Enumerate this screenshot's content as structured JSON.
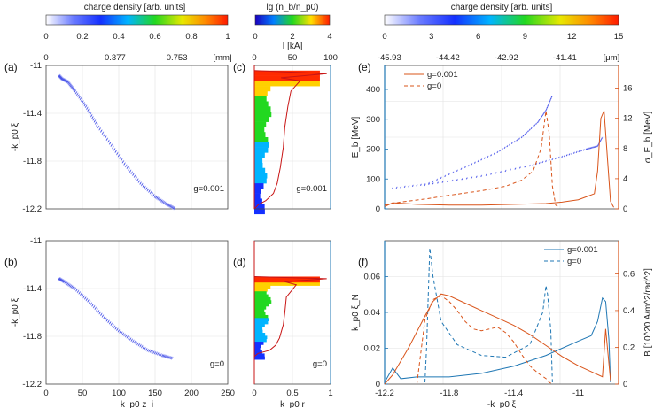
{
  "colorbars": {
    "cb1": {
      "title": "charge density [arb. units]",
      "ticks": [
        "0",
        "0.2",
        "0.4",
        "0.6",
        "0.8",
        "1"
      ]
    },
    "cb2": {
      "title": "lg (n_b/n_p0)",
      "ticks": [
        "0",
        "2",
        "4"
      ]
    },
    "cb3": {
      "title": "charge density [arb. units]",
      "ticks": [
        "0",
        "3",
        "6",
        "9",
        "12",
        "15"
      ]
    }
  },
  "colors": {
    "blue_axis": "#1f77b4",
    "orange_axis": "#d9541a",
    "red_line": "#c81414",
    "grid": "#e2e2e2"
  },
  "chart_data": [
    {
      "panel": "a",
      "type": "scatter",
      "xlabel": "",
      "ylabel": "-k_p0 ξ",
      "xticks": [],
      "yticks": [
        "-11",
        "-11.4",
        "-11.8",
        "-12.2"
      ],
      "top_axis": {
        "label": "[mm]",
        "ticks": [
          "0",
          "0.377",
          "0.753"
        ]
      },
      "xlim": [
        0,
        250
      ],
      "ylim": [
        -12.2,
        -10.8
      ],
      "annotation": "g=0.001",
      "trace": {
        "x": [
          18,
          22,
          30,
          40,
          55,
          70,
          90,
          110,
          130,
          150,
          165,
          178
        ],
        "y": [
          -10.9,
          -10.93,
          -10.96,
          -11.05,
          -11.2,
          -11.38,
          -11.58,
          -11.78,
          -11.95,
          -12.08,
          -12.15,
          -12.2
        ]
      }
    },
    {
      "panel": "b",
      "type": "scatter",
      "xlabel": "k_p0 z_i",
      "ylabel": "-k_p0 ξ",
      "xticks": [
        "0",
        "50",
        "100",
        "150",
        "200",
        "250"
      ],
      "yticks": [
        "-11",
        "-11.4",
        "-11.8",
        "-12.2"
      ],
      "xlim": [
        0,
        250
      ],
      "ylim": [
        -12.2,
        -10.8
      ],
      "annotation": "g=0",
      "trace": {
        "x": [
          18,
          25,
          40,
          60,
          80,
          100,
          120,
          140,
          160,
          175
        ],
        "y": [
          -11.17,
          -11.2,
          -11.27,
          -11.4,
          -11.55,
          -11.68,
          -11.78,
          -11.87,
          -11.92,
          -11.95
        ]
      }
    },
    {
      "panel": "c",
      "type": "heatmap",
      "xlabel": "",
      "ylabel": "",
      "xticks": [],
      "yticks": [],
      "top_axis": {
        "label": "I [kA]",
        "ticks": [
          "0",
          "50",
          "100"
        ]
      },
      "xlim": [
        0,
        1
      ],
      "ylim": [
        -12.2,
        -10.8
      ],
      "annotation": "g=0.001",
      "current_line": {
        "I_kA": [
          0,
          95,
          35,
          60,
          48,
          44,
          40,
          38,
          34,
          30,
          25,
          15,
          5,
          0
        ],
        "y": [
          -10.85,
          -10.88,
          -10.92,
          -10.95,
          -11.05,
          -11.2,
          -11.4,
          -11.6,
          -11.8,
          -11.95,
          -12.05,
          -12.12,
          -12.16,
          -12.2
        ]
      }
    },
    {
      "panel": "d",
      "type": "heatmap",
      "xlabel": "k_p0 r",
      "ylabel": "",
      "xticks": [
        "0",
        "0.5",
        "1"
      ],
      "yticks": [],
      "xlim": [
        0,
        1
      ],
      "ylim": [
        -12.2,
        -10.8
      ],
      "annotation": "g=0",
      "current_line": {
        "I_kA": [
          0,
          95,
          40,
          55,
          42,
          40,
          38,
          33,
          28,
          20,
          5,
          0
        ],
        "y": [
          -11.15,
          -11.17,
          -11.2,
          -11.23,
          -11.35,
          -11.5,
          -11.62,
          -11.75,
          -11.82,
          -11.87,
          -11.9,
          -11.93
        ]
      }
    },
    {
      "panel": "e",
      "type": "line",
      "xlabel": "",
      "ylabel": "E_b [MeV]",
      "y2label": "σ_E_b [MeV]",
      "xlim": [
        -12.2,
        -10.75
      ],
      "ylim": [
        0,
        480
      ],
      "y2lim": [
        0,
        19
      ],
      "yticks": [
        "0",
        "100",
        "200",
        "300",
        "400"
      ],
      "y2ticks": [
        "0",
        "4",
        "8",
        "12",
        "16"
      ],
      "top_axis": {
        "label": "[μm]",
        "ticks": [
          "-45.93",
          "-44.42",
          "-42.92",
          "-41.41"
        ]
      },
      "legend": [
        "g=0.001",
        "g=0"
      ],
      "series": [
        {
          "name": "g=0.001",
          "axis": "left",
          "style": "scatter-blue",
          "x": [
            -12.15,
            -11.9,
            -11.6,
            -11.3,
            -11.1,
            -10.95,
            -10.88,
            -10.85
          ],
          "y": [
            70,
            85,
            110,
            145,
            175,
            200,
            210,
            240
          ]
        },
        {
          "name": "g=0",
          "axis": "left",
          "style": "scatter-blue",
          "x": [
            -11.95,
            -11.7,
            -11.5,
            -11.35,
            -11.25,
            -11.2,
            -11.16
          ],
          "y": [
            80,
            140,
            190,
            240,
            290,
            330,
            380
          ]
        },
        {
          "name": "g=0.001",
          "axis": "right",
          "style": "solid",
          "x": [
            -12.2,
            -12.15,
            -12.0,
            -11.8,
            -11.6,
            -11.4,
            -11.2,
            -11.1,
            -11.0,
            -10.95,
            -10.9,
            -10.88,
            -10.86,
            -10.84,
            -10.82,
            -10.8,
            -10.78
          ],
          "y": [
            0.3,
            0.8,
            0.6,
            0.5,
            0.5,
            0.6,
            0.7,
            0.9,
            1.2,
            1.6,
            2.0,
            5.0,
            12.0,
            13.0,
            7.0,
            1.0,
            0.2
          ]
        },
        {
          "name": "g=0",
          "axis": "right",
          "style": "dashed",
          "x": [
            -12.2,
            -12.1,
            -11.95,
            -11.8,
            -11.6,
            -11.45,
            -11.35,
            -11.28,
            -11.23,
            -11.2,
            -11.18,
            -11.16,
            -11.14,
            -11.12
          ],
          "y": [
            0.5,
            0.9,
            1.3,
            1.8,
            2.4,
            3.0,
            3.8,
            5.0,
            8.0,
            13.0,
            10.0,
            3.0,
            0.5,
            0.2
          ]
        }
      ]
    },
    {
      "panel": "f",
      "type": "line",
      "xlabel": "-k_p0 ξ",
      "ylabel": "k_p0 ξ_N",
      "y2label": "B [10^20 A/m^2/rad^2]",
      "xlim": [
        -12.2,
        -10.75
      ],
      "ylim": [
        0,
        0.08
      ],
      "y2lim": [
        0,
        0.78
      ],
      "xticks": [
        "-12.2",
        "-11.8",
        "-11.4",
        "-11"
      ],
      "yticks": [
        "0",
        "0.02",
        "0.04",
        "0.06"
      ],
      "y2ticks": [
        "0",
        "0.2",
        "0.4",
        "0.6"
      ],
      "legend": [
        "g=0.001",
        "g=0"
      ],
      "series": [
        {
          "name": "g=0.001",
          "axis": "left",
          "style": "solid",
          "x": [
            -12.2,
            -12.15,
            -12.1,
            -12.0,
            -11.8,
            -11.6,
            -11.4,
            -11.2,
            -11.0,
            -10.92,
            -10.88,
            -10.85,
            -10.83,
            -10.81,
            -10.8
          ],
          "y": [
            0.001,
            0.009,
            0.003,
            0.004,
            0.004,
            0.006,
            0.01,
            0.016,
            0.024,
            0.027,
            0.035,
            0.048,
            0.046,
            0.025,
            0.001
          ]
        },
        {
          "name": "g=0",
          "axis": "left",
          "style": "dashed",
          "x": [
            -11.95,
            -11.94,
            -11.92,
            -11.9,
            -11.85,
            -11.75,
            -11.6,
            -11.45,
            -11.3,
            -11.22,
            -11.2,
            -11.19,
            -11.17,
            -11.16
          ],
          "y": [
            0.001,
            0.02,
            0.076,
            0.06,
            0.035,
            0.022,
            0.016,
            0.015,
            0.022,
            0.04,
            0.055,
            0.05,
            0.03,
            0.001
          ]
        },
        {
          "name": "g=0.001",
          "axis": "right",
          "style": "solid",
          "x": [
            -12.2,
            -12.15,
            -12.05,
            -11.95,
            -11.9,
            -11.85,
            -11.8,
            -11.7,
            -11.6,
            -11.5,
            -11.4,
            -11.3,
            -11.2,
            -11.1,
            -11.0,
            -10.9,
            -10.85,
            -10.83,
            -10.8
          ],
          "y": [
            0.0,
            0.05,
            0.2,
            0.37,
            0.45,
            0.49,
            0.48,
            0.44,
            0.4,
            0.36,
            0.32,
            0.27,
            0.21,
            0.15,
            0.1,
            0.06,
            0.04,
            0.3,
            0.02
          ]
        },
        {
          "name": "g=0",
          "axis": "right",
          "style": "dashed",
          "x": [
            -12.0,
            -11.95,
            -11.9,
            -11.85,
            -11.8,
            -11.75,
            -11.7,
            -11.65,
            -11.6,
            -11.55,
            -11.5,
            -11.45,
            -11.4,
            -11.35,
            -11.3,
            -11.25,
            -11.2,
            -11.18,
            -11.16
          ],
          "y": [
            0.0,
            0.35,
            0.46,
            0.48,
            0.45,
            0.4,
            0.34,
            0.3,
            0.29,
            0.3,
            0.31,
            0.28,
            0.23,
            0.16,
            0.1,
            0.06,
            0.03,
            0.01,
            0.0
          ]
        }
      ]
    }
  ]
}
